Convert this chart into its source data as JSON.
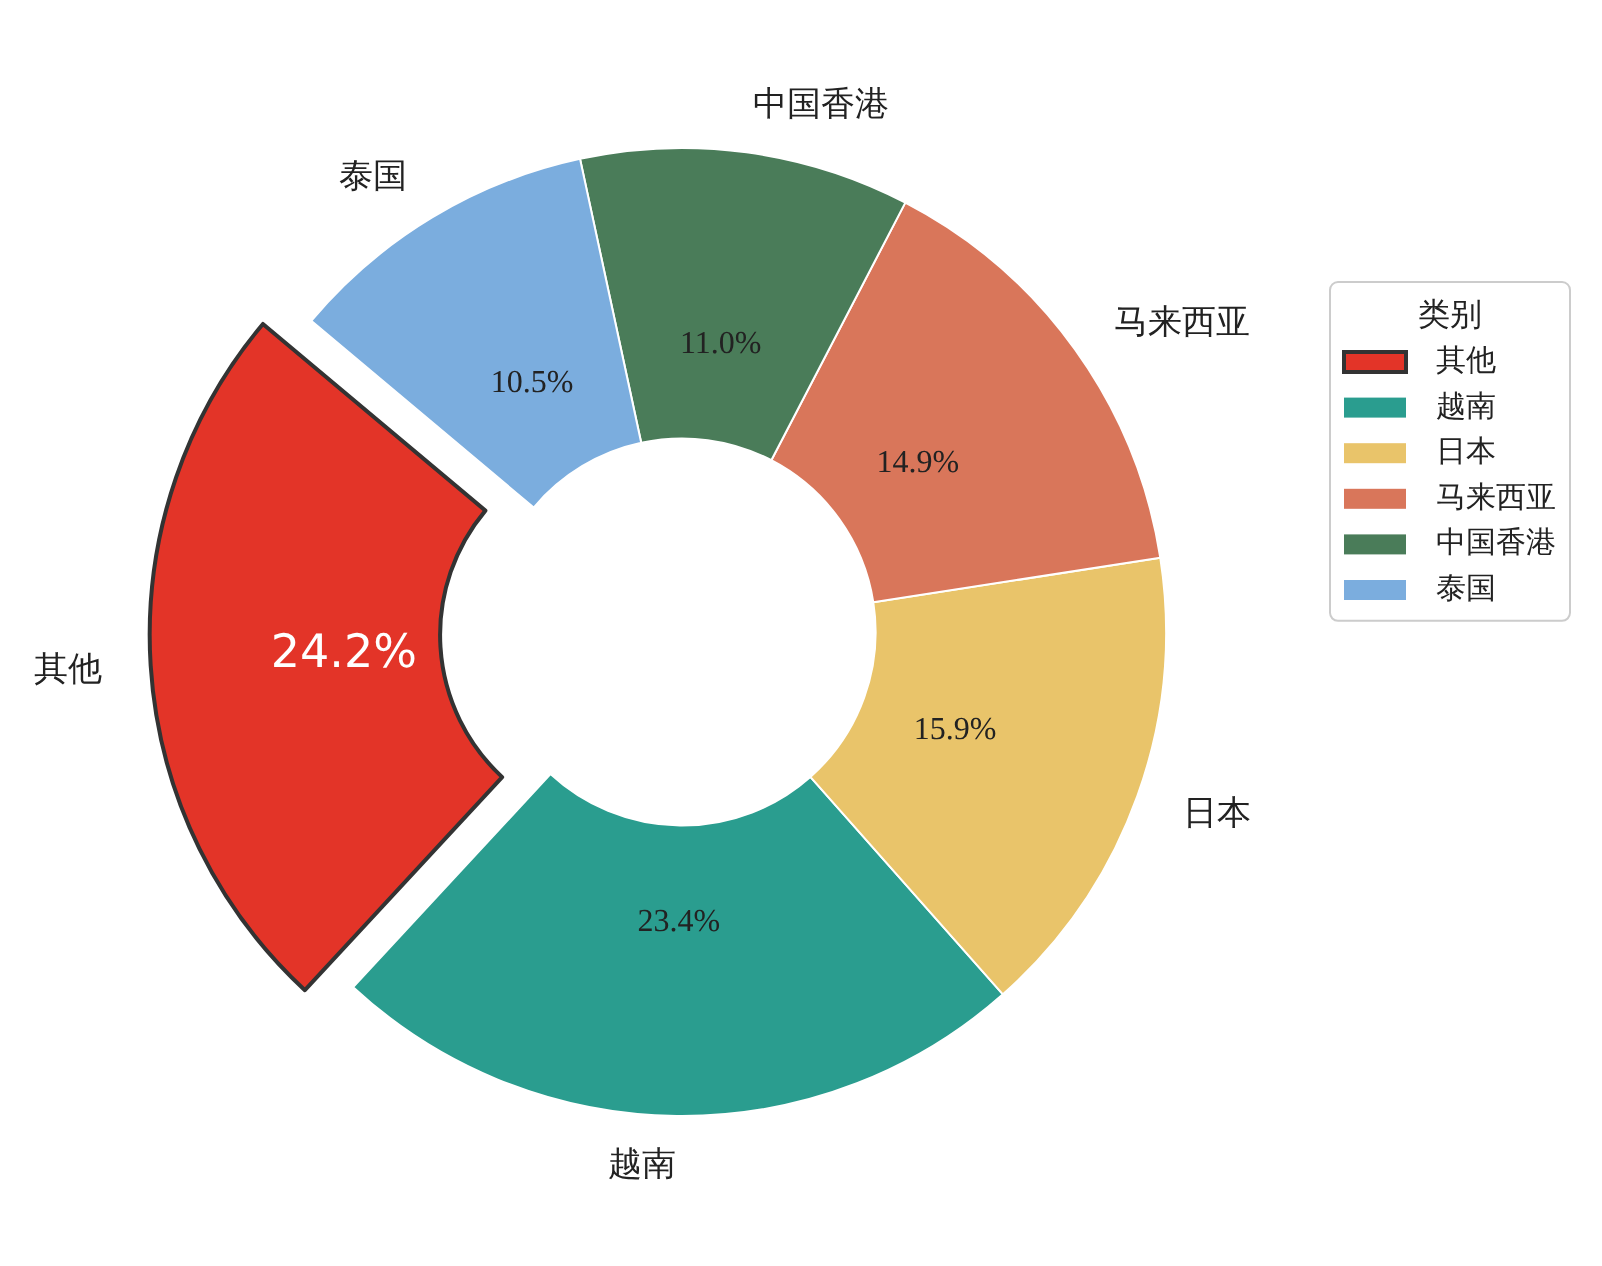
{
  "chart_data": {
    "type": "donut",
    "categories": [
      "其他",
      "越南",
      "日本",
      "马来西亚",
      "中国香港",
      "泰国"
    ],
    "values": [
      24.2,
      23.4,
      15.9,
      14.9,
      11.0,
      10.5
    ],
    "value_labels": [
      "24.2%",
      "23.4%",
      "15.9%",
      "14.9%",
      "11.0%",
      "10.5%"
    ],
    "colors": [
      "#e33428",
      "#2a9d8f",
      "#e9c46a",
      "#d9765a",
      "#4a7c59",
      "#7badde"
    ],
    "legend": "right",
    "legend_title": "类别"
  }
}
